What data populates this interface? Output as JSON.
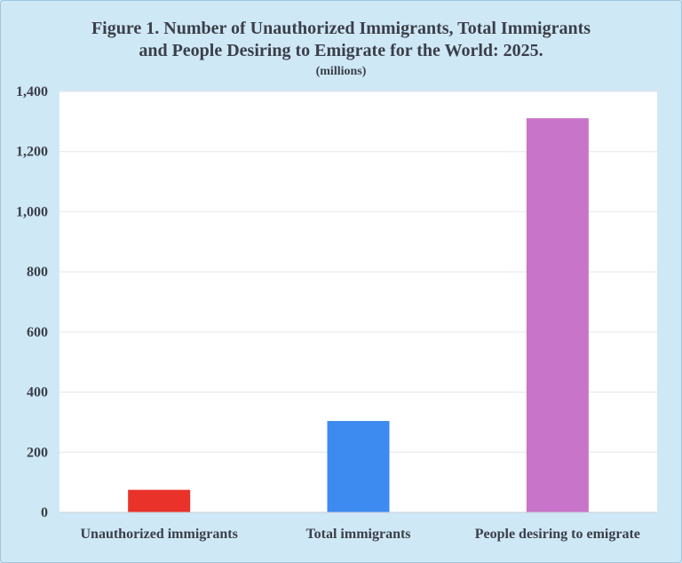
{
  "chart_data": {
    "type": "bar",
    "title_line1": "Figure 1. Number of Unauthorized Immigrants, Total Immigrants",
    "title_line2": "and People Desiring to Emigrate for the World: 2025.",
    "subtitle": "(millions)",
    "categories": [
      "Unauthorized immigrants",
      "Total immigrants",
      "People desiring to emigrate"
    ],
    "values": [
      75,
      304,
      1311
    ],
    "colors": [
      "#e8322a",
      "#3d8af0",
      "#c874c8"
    ],
    "ylim": [
      0,
      1400
    ],
    "yticks": [
      "0",
      "200",
      "400",
      "600",
      "800",
      "1,000",
      "1,200",
      "1,400"
    ],
    "ytick_values": [
      0,
      200,
      400,
      600,
      800,
      1000,
      1200,
      1400
    ],
    "grid": true
  }
}
